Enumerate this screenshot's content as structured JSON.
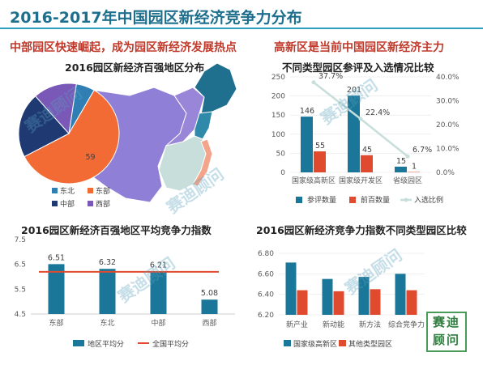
{
  "page": {
    "title": "2016-2017年中国园区新经济竞争力分布",
    "subhead_left": "中部园区快速崛起，成为园区新经济发展热点",
    "subhead_right": "高新区是当前中国园区新经济主力",
    "watermark": "赛迪顾问",
    "stamp": "赛迪顾问"
  },
  "colors": {
    "title": "#1e6f8e",
    "subhead": "#c0392b",
    "navy": "#1f3a73",
    "orange": "#f26b34",
    "purple": "#7a58b8",
    "teal": "#1b7799",
    "red": "#e04a2f",
    "light": "#c7dedb"
  },
  "chart_data": [
    {
      "type": "pie",
      "title": "2016园区新经济百强地区分布",
      "labels": [
        "东北",
        "东部",
        "中部",
        "西部"
      ],
      "values": [
        6,
        59,
        21,
        14
      ],
      "data_labels": [
        "",
        "59",
        "",
        ""
      ],
      "colors": [
        "#2f7fb5",
        "#f26b34",
        "#1f3a73",
        "#7a58b8"
      ],
      "map_regions": {
        "purple": "中部/西部",
        "navy": "东北",
        "orange": "东部",
        "light": "其他"
      },
      "legend": "bottom-left"
    },
    {
      "type": "bar",
      "title": "不同类型园区参评及入选情况比较",
      "categories": [
        "国家级高新区",
        "国家级开发区",
        "省级园区"
      ],
      "series": [
        {
          "name": "参评数量",
          "values": [
            146,
            201,
            15
          ],
          "axis": "left",
          "color": "#1b7799"
        },
        {
          "name": "前百数量",
          "values": [
            55,
            45,
            1
          ],
          "axis": "left",
          "color": "#e04a2f"
        },
        {
          "name": "入选比例",
          "type": "line",
          "values": [
            37.7,
            22.4,
            6.7
          ],
          "labels": [
            "37.7%",
            "22.4%",
            "6.7%"
          ],
          "axis": "right",
          "color": "#c7dedb"
        }
      ],
      "ylim": [
        0,
        250
      ],
      "yticks": [
        0,
        50,
        100,
        150,
        200,
        250
      ],
      "y2lim": [
        0,
        40
      ],
      "y2ticks": [
        "0.0%",
        "10.0%",
        "20.0%",
        "30.0%",
        "40.0%"
      ],
      "legend": "bottom"
    },
    {
      "type": "bar",
      "title": "2016园区新经济百强地区平均竞争力指数",
      "categories": [
        "东部",
        "东北",
        "中部",
        "西部"
      ],
      "series": [
        {
          "name": "地区平均分",
          "values": [
            6.51,
            6.32,
            6.21,
            5.08
          ],
          "labels": [
            "6.51",
            "6.32",
            "6.21",
            "5.08"
          ],
          "color": "#1b7799"
        },
        {
          "name": "全国平均分",
          "type": "line",
          "values": [
            6.2,
            6.2,
            6.2,
            6.2
          ],
          "color": "#e04a2f"
        }
      ],
      "ylim": [
        4.5,
        7.5
      ],
      "yticks": [
        "4.5",
        "5.5",
        "6.5",
        "7.5"
      ],
      "legend": "bottom"
    },
    {
      "type": "bar",
      "title": "2016园区新经济竞争力指数不同类型园区比较",
      "categories": [
        "新产业",
        "新动能",
        "新方法",
        "综合竞争力"
      ],
      "series": [
        {
          "name": "国家级高新区",
          "values": [
            6.71,
            6.55,
            6.57,
            6.6
          ],
          "color": "#1b7799"
        },
        {
          "name": "其他类型园区",
          "values": [
            6.44,
            6.43,
            6.45,
            6.44
          ],
          "color": "#e04a2f"
        }
      ],
      "ylim": [
        6.2,
        6.8
      ],
      "yticks": [
        "6.20",
        "6.40",
        "6.60",
        "6.80"
      ],
      "legend": "bottom"
    }
  ]
}
